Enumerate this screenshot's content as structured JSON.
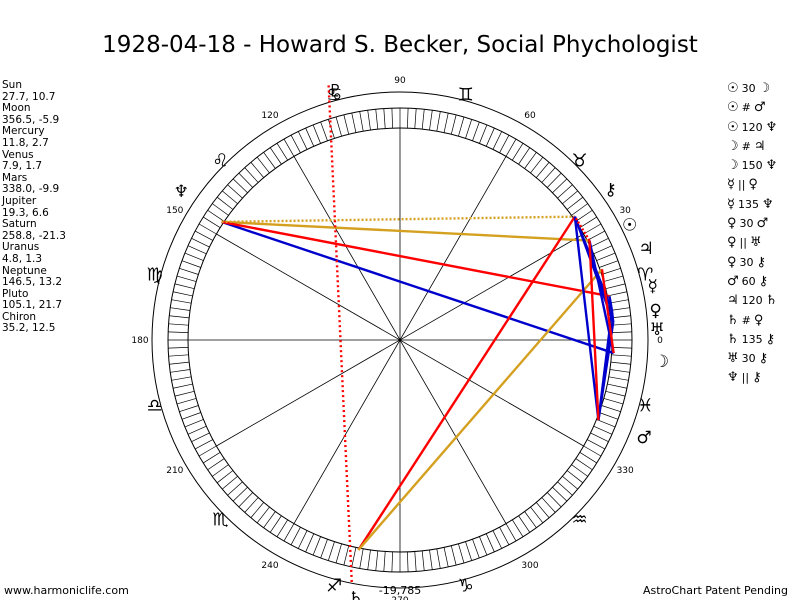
{
  "title": "1928-04-18 - Howard S. Becker, Social Phychologist",
  "planets": [
    {
      "name": "Sun",
      "value": "27.7, 10.7",
      "glyph": "☉",
      "lon": 27.7
    },
    {
      "name": "Moon",
      "value": "356.5, -5.9",
      "glyph": "☽",
      "lon": 356.5
    },
    {
      "name": "Mercury",
      "value": "11.8, 2.7",
      "glyph": "☿",
      "lon": 11.8
    },
    {
      "name": "Venus",
      "value": "7.9, 1.7",
      "glyph": "♀",
      "lon": 7.9
    },
    {
      "name": "Mars",
      "value": "338.0, -9.9",
      "glyph": "♂",
      "lon": 338.0
    },
    {
      "name": "Jupiter",
      "value": "19.3, 6.6",
      "glyph": "♃",
      "lon": 19.3
    },
    {
      "name": "Saturn",
      "value": "258.8, -21.3",
      "glyph": "♄",
      "lon": 258.8
    },
    {
      "name": "Uranus",
      "value": "4.8, 1.3",
      "glyph": "♅",
      "lon": 4.8
    },
    {
      "name": "Neptune",
      "value": "146.5, 13.2",
      "glyph": "♆",
      "lon": 146.5
    },
    {
      "name": "Pluto",
      "value": "105.1, 21.7",
      "glyph": "♇",
      "lon": 105.1
    },
    {
      "name": "Chiron",
      "value": "35.2, 12.5",
      "glyph": "⚷",
      "lon": 35.2
    }
  ],
  "aspects": [
    {
      "a": "☉",
      "angle": "30",
      "b": "☽"
    },
    {
      "a": "☉",
      "angle": "#",
      "b": "♂"
    },
    {
      "a": "☉",
      "angle": "120",
      "b": "♆"
    },
    {
      "a": "☽",
      "angle": "#",
      "b": "♃"
    },
    {
      "a": "☽",
      "angle": "150",
      "b": "♆"
    },
    {
      "a": "☿",
      "angle": "||",
      "b": "♀"
    },
    {
      "a": "☿",
      "angle": "135",
      "b": "♆"
    },
    {
      "a": "♀",
      "angle": "30",
      "b": "♂"
    },
    {
      "a": "♀",
      "angle": "||",
      "b": "♅"
    },
    {
      "a": "♀",
      "angle": "30",
      "b": "⚷"
    },
    {
      "a": "♂",
      "angle": "60",
      "b": "⚷"
    },
    {
      "a": "♃",
      "angle": "120",
      "b": "♄"
    },
    {
      "a": "♄",
      "angle": "#",
      "b": "♀"
    },
    {
      "a": "♄",
      "angle": "135",
      "b": "⚷"
    },
    {
      "a": "♅",
      "angle": "30",
      "b": "⚷"
    },
    {
      "a": "♆",
      "angle": "||",
      "b": "⚷"
    }
  ],
  "degree_labels": [
    "0",
    "30",
    "60",
    "90",
    "120",
    "150",
    "180",
    "210",
    "240",
    "270",
    "300",
    "330"
  ],
  "signs": [
    "♈",
    "♉",
    "♊",
    "♋",
    "♌",
    "♍",
    "♎",
    "♏",
    "♐",
    "♑",
    "♒",
    "♓"
  ],
  "below_label": "-19,785",
  "footer_left": "www.harmoniclife.com",
  "footer_right": "AstroChart Patent Pending",
  "colors": {
    "red": "#ff0000",
    "blue": "#0000cc",
    "gold": "#d4a020",
    "ink": "#000000"
  }
}
